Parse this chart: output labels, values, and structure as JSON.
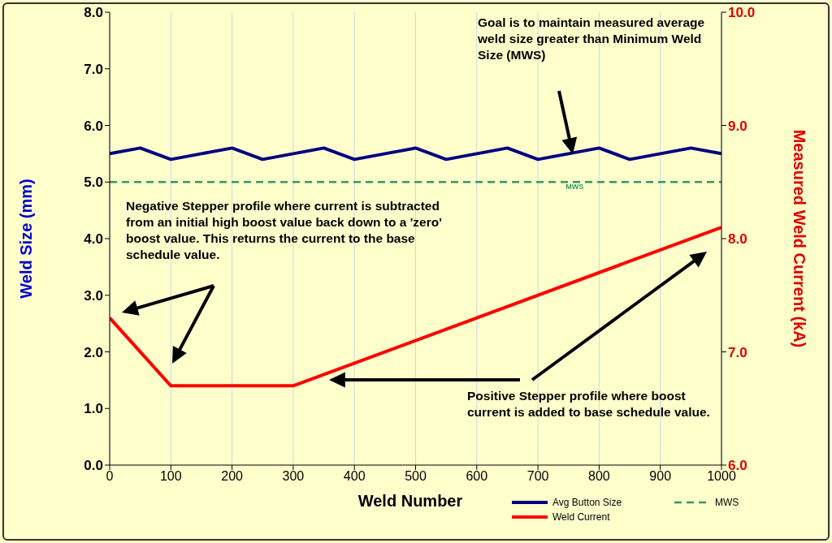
{
  "chart_data": {
    "type": "line",
    "xlabel": "Weld Number",
    "ylabel": "Weld Size (mm)",
    "y2label": "Measured Weld Current (kA)",
    "series": [
      {
        "name": "Avg Button Size",
        "color": "#000080",
        "x": [
          0,
          50,
          100,
          150,
          200,
          250,
          300,
          350,
          400,
          450,
          500,
          550,
          600,
          650,
          700,
          750,
          800,
          850,
          900,
          950,
          1000
        ],
        "values": [
          5.5,
          5.6,
          5.4,
          5.5,
          5.6,
          5.4,
          5.5,
          5.6,
          5.4,
          5.5,
          5.6,
          5.4,
          5.5,
          5.6,
          5.4,
          5.5,
          5.6,
          5.4,
          5.5,
          5.6,
          5.5
        ]
      },
      {
        "name": "MWS",
        "color": "#339966",
        "line_style": "dashed",
        "x": [
          0,
          1000
        ],
        "values": [
          5.0,
          5.0
        ]
      },
      {
        "name": "Weld Current",
        "color": "#ff0000",
        "axis": "y2",
        "x": [
          0,
          100,
          300,
          1000
        ],
        "values": [
          7.3,
          6.7,
          6.7,
          8.1
        ]
      }
    ],
    "xlim": [
      0,
      1000
    ],
    "xticks": [
      0,
      100,
      200,
      300,
      400,
      500,
      600,
      700,
      800,
      900,
      1000
    ],
    "ylim": [
      0,
      8
    ],
    "yticks": [
      {
        "value": 0,
        "label": "0.0"
      },
      {
        "value": 1,
        "label": "1.0"
      },
      {
        "value": 2,
        "label": "2.0"
      },
      {
        "value": 3,
        "label": "3.0"
      },
      {
        "value": 4,
        "label": "4.0"
      },
      {
        "value": 5,
        "label": "5.0"
      },
      {
        "value": 6,
        "label": "6.0"
      },
      {
        "value": 7,
        "label": "7.0"
      },
      {
        "value": 8,
        "label": "8.0"
      }
    ],
    "y2lim": [
      6,
      10
    ],
    "y2ticks": [
      {
        "value": 6,
        "label": "6.0"
      },
      {
        "value": 7,
        "label": "7.0"
      },
      {
        "value": 8,
        "label": "8.0"
      },
      {
        "value": 9,
        "label": "9.0"
      },
      {
        "value": 10,
        "label": "10.0"
      }
    ],
    "grid": "x",
    "legend": "bottom right",
    "marker": "none",
    "annotations": [
      "Goal is to maintain measured average weld size greater than Minimum Weld Size (MWS)",
      "Negative Stepper profile where current is subtracted from an initial high boost value back down to a 'zero' boost value.  This returns the current to the base schedule value.",
      "Positive Stepper profile where boost current is added to base schedule value.",
      {
        "text": "MWS",
        "x": 760,
        "y": 5.0
      }
    ]
  }
}
